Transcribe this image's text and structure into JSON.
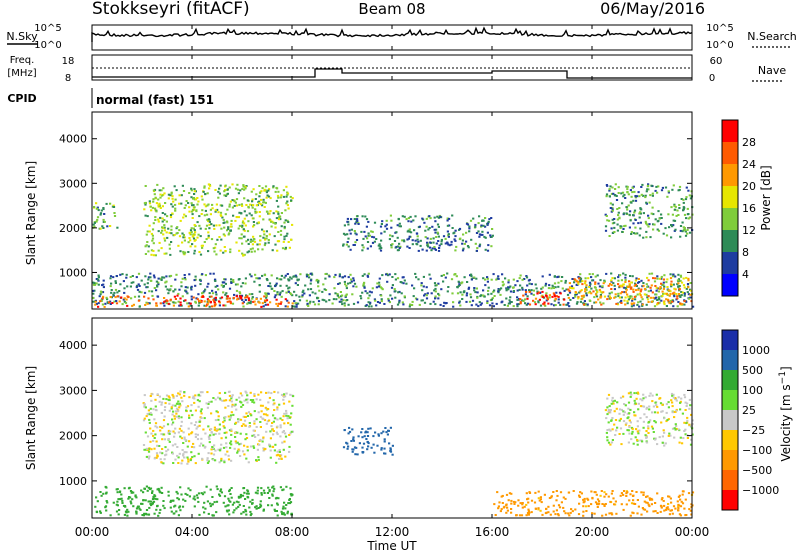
{
  "header": {
    "station": "Stokkseyri (fitACF)",
    "beam": "Beam 08",
    "date": "06/May/2016"
  },
  "noise_panel": {
    "left_label": "N.Sky",
    "right_label": "N.Search",
    "left_ticks": [
      "10^5",
      "10^0"
    ],
    "right_ticks": [
      "10^5",
      "10^0"
    ]
  },
  "freq_panel": {
    "left_label_1": "Freq.",
    "left_label_2": "[MHz]",
    "right_label": "Nave",
    "left_ticks": [
      "18",
      "8"
    ],
    "right_ticks": [
      "60",
      "0"
    ]
  },
  "cpid": {
    "label": "CPID",
    "value": "normal (fast) 151"
  },
  "colors": {
    "power": [
      "#0000ff",
      "#1e3ca0",
      "#2e8b57",
      "#7fcc3a",
      "#e6e600",
      "#ff9900",
      "#ff5a00",
      "#ff0000"
    ],
    "velocity": [
      "#ff0000",
      "#ff6600",
      "#ff9900",
      "#ffc800",
      "#c8c8c8",
      "#66dd33",
      "#33aa33",
      "#2266aa",
      "#1a2ea8"
    ]
  },
  "chart_data": [
    {
      "type": "heatmap",
      "name": "power",
      "ylabel": "Slant Range [km]",
      "yticks": [
        "1000",
        "2000",
        "3000",
        "4000"
      ],
      "ylim": [
        180,
        4600
      ],
      "colorbar": {
        "label": "Power [dB]",
        "ticks": [
          "4",
          "8",
          "12",
          "16",
          "20",
          "24",
          "28"
        ],
        "range": [
          0,
          32
        ]
      },
      "echo_regions": [
        {
          "t": [
            0.0,
            24.0
          ],
          "r": [
            250,
            1000
          ],
          "v": 10
        },
        {
          "t": [
            0.0,
            8.0
          ],
          "r": [
            250,
            500
          ],
          "v": 26
        },
        {
          "t": [
            17.0,
            19.0
          ],
          "r": [
            300,
            600
          ],
          "v": 28
        },
        {
          "t": [
            19.0,
            24.0
          ],
          "r": [
            300,
            900
          ],
          "v": 22
        },
        {
          "t": [
            2.0,
            8.0
          ],
          "r": [
            1400,
            3000
          ],
          "v": 14
        },
        {
          "t": [
            0.0,
            1.0
          ],
          "r": [
            2000,
            2600
          ],
          "v": 12
        },
        {
          "t": [
            10.0,
            16.0
          ],
          "r": [
            1500,
            2300
          ],
          "v": 9
        },
        {
          "t": [
            20.5,
            24.0
          ],
          "r": [
            1800,
            3000
          ],
          "v": 11
        }
      ]
    },
    {
      "type": "heatmap",
      "name": "velocity",
      "ylabel": "Slant Range [km]",
      "yticks": [
        "1000",
        "2000",
        "3000",
        "4000"
      ],
      "ylim": [
        180,
        4600
      ],
      "colorbar": {
        "label": "Velocity [m s^-1]",
        "ticks": [
          "1000",
          "500",
          "100",
          "25",
          "−25",
          "−100",
          "−500",
          "−1000"
        ]
      },
      "echo_regions": [
        {
          "t": [
            0.0,
            8.0
          ],
          "r": [
            250,
            900
          ],
          "v": 200
        },
        {
          "t": [
            2.0,
            8.0
          ],
          "r": [
            1400,
            3000
          ],
          "v": 0
        },
        {
          "t": [
            10.0,
            12.0
          ],
          "r": [
            1600,
            2200
          ],
          "v": 800
        },
        {
          "t": [
            16.0,
            24.0
          ],
          "r": [
            250,
            800
          ],
          "v": -150
        },
        {
          "t": [
            20.5,
            24.0
          ],
          "r": [
            1800,
            3000
          ],
          "v": 0
        }
      ]
    }
  ],
  "xaxis": {
    "label": "Time UT",
    "ticks": [
      "00:00",
      "04:00",
      "08:00",
      "12:00",
      "16:00",
      "20:00",
      "00:00"
    ]
  }
}
